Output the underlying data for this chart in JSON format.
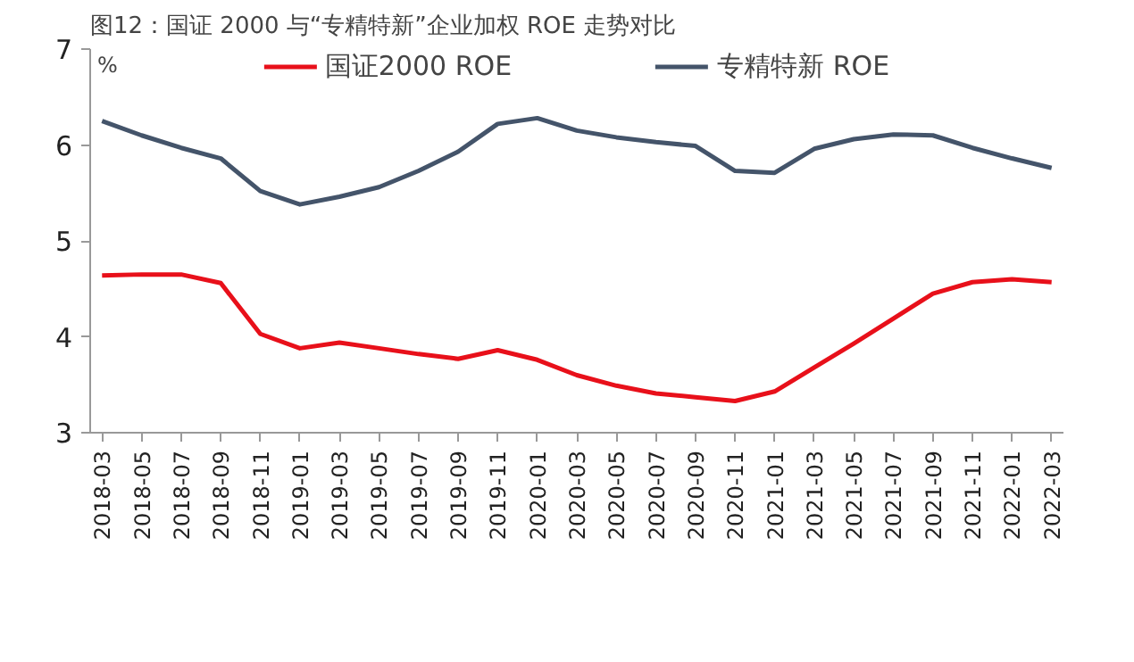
{
  "chart_data": {
    "type": "line",
    "title": "图12：国证 2000 与“专精特新”企业加权 ROE 走势对比",
    "ylabel": "%",
    "categories": [
      "2018-03",
      "2018-05",
      "2018-07",
      "2018-09",
      "2018-11",
      "2019-01",
      "2019-03",
      "2019-05",
      "2019-07",
      "2019-09",
      "2019-11",
      "2020-01",
      "2020-03",
      "2020-05",
      "2020-07",
      "2020-09",
      "2020-11",
      "2021-01",
      "2021-03",
      "2021-05",
      "2021-07",
      "2021-09",
      "2021-11",
      "2022-01",
      "2022-03"
    ],
    "series": [
      {
        "name": "国证2000 ROE",
        "color": "#e8101a",
        "values": [
          4.64,
          4.65,
          4.65,
          4.56,
          4.03,
          3.88,
          3.94,
          3.88,
          3.82,
          3.77,
          3.86,
          3.76,
          3.6,
          3.49,
          3.41,
          3.37,
          3.33,
          3.43,
          3.68,
          3.93,
          4.19,
          4.45,
          4.57,
          4.6,
          4.57
        ]
      },
      {
        "name": "专精特新 ROE",
        "color": "#44546a",
        "values": [
          6.25,
          6.1,
          5.97,
          5.86,
          5.52,
          5.38,
          5.46,
          5.56,
          5.73,
          5.93,
          6.22,
          6.28,
          6.15,
          6.08,
          6.03,
          5.99,
          5.73,
          5.71,
          5.96,
          6.06,
          6.11,
          6.1,
          5.97,
          5.86,
          5.76
        ]
      }
    ],
    "ylim": [
      3,
      7
    ],
    "yticks": [
      3,
      4,
      5,
      6,
      7
    ],
    "grid": false,
    "legend": "top",
    "marker": "none",
    "line_style": "solid"
  }
}
